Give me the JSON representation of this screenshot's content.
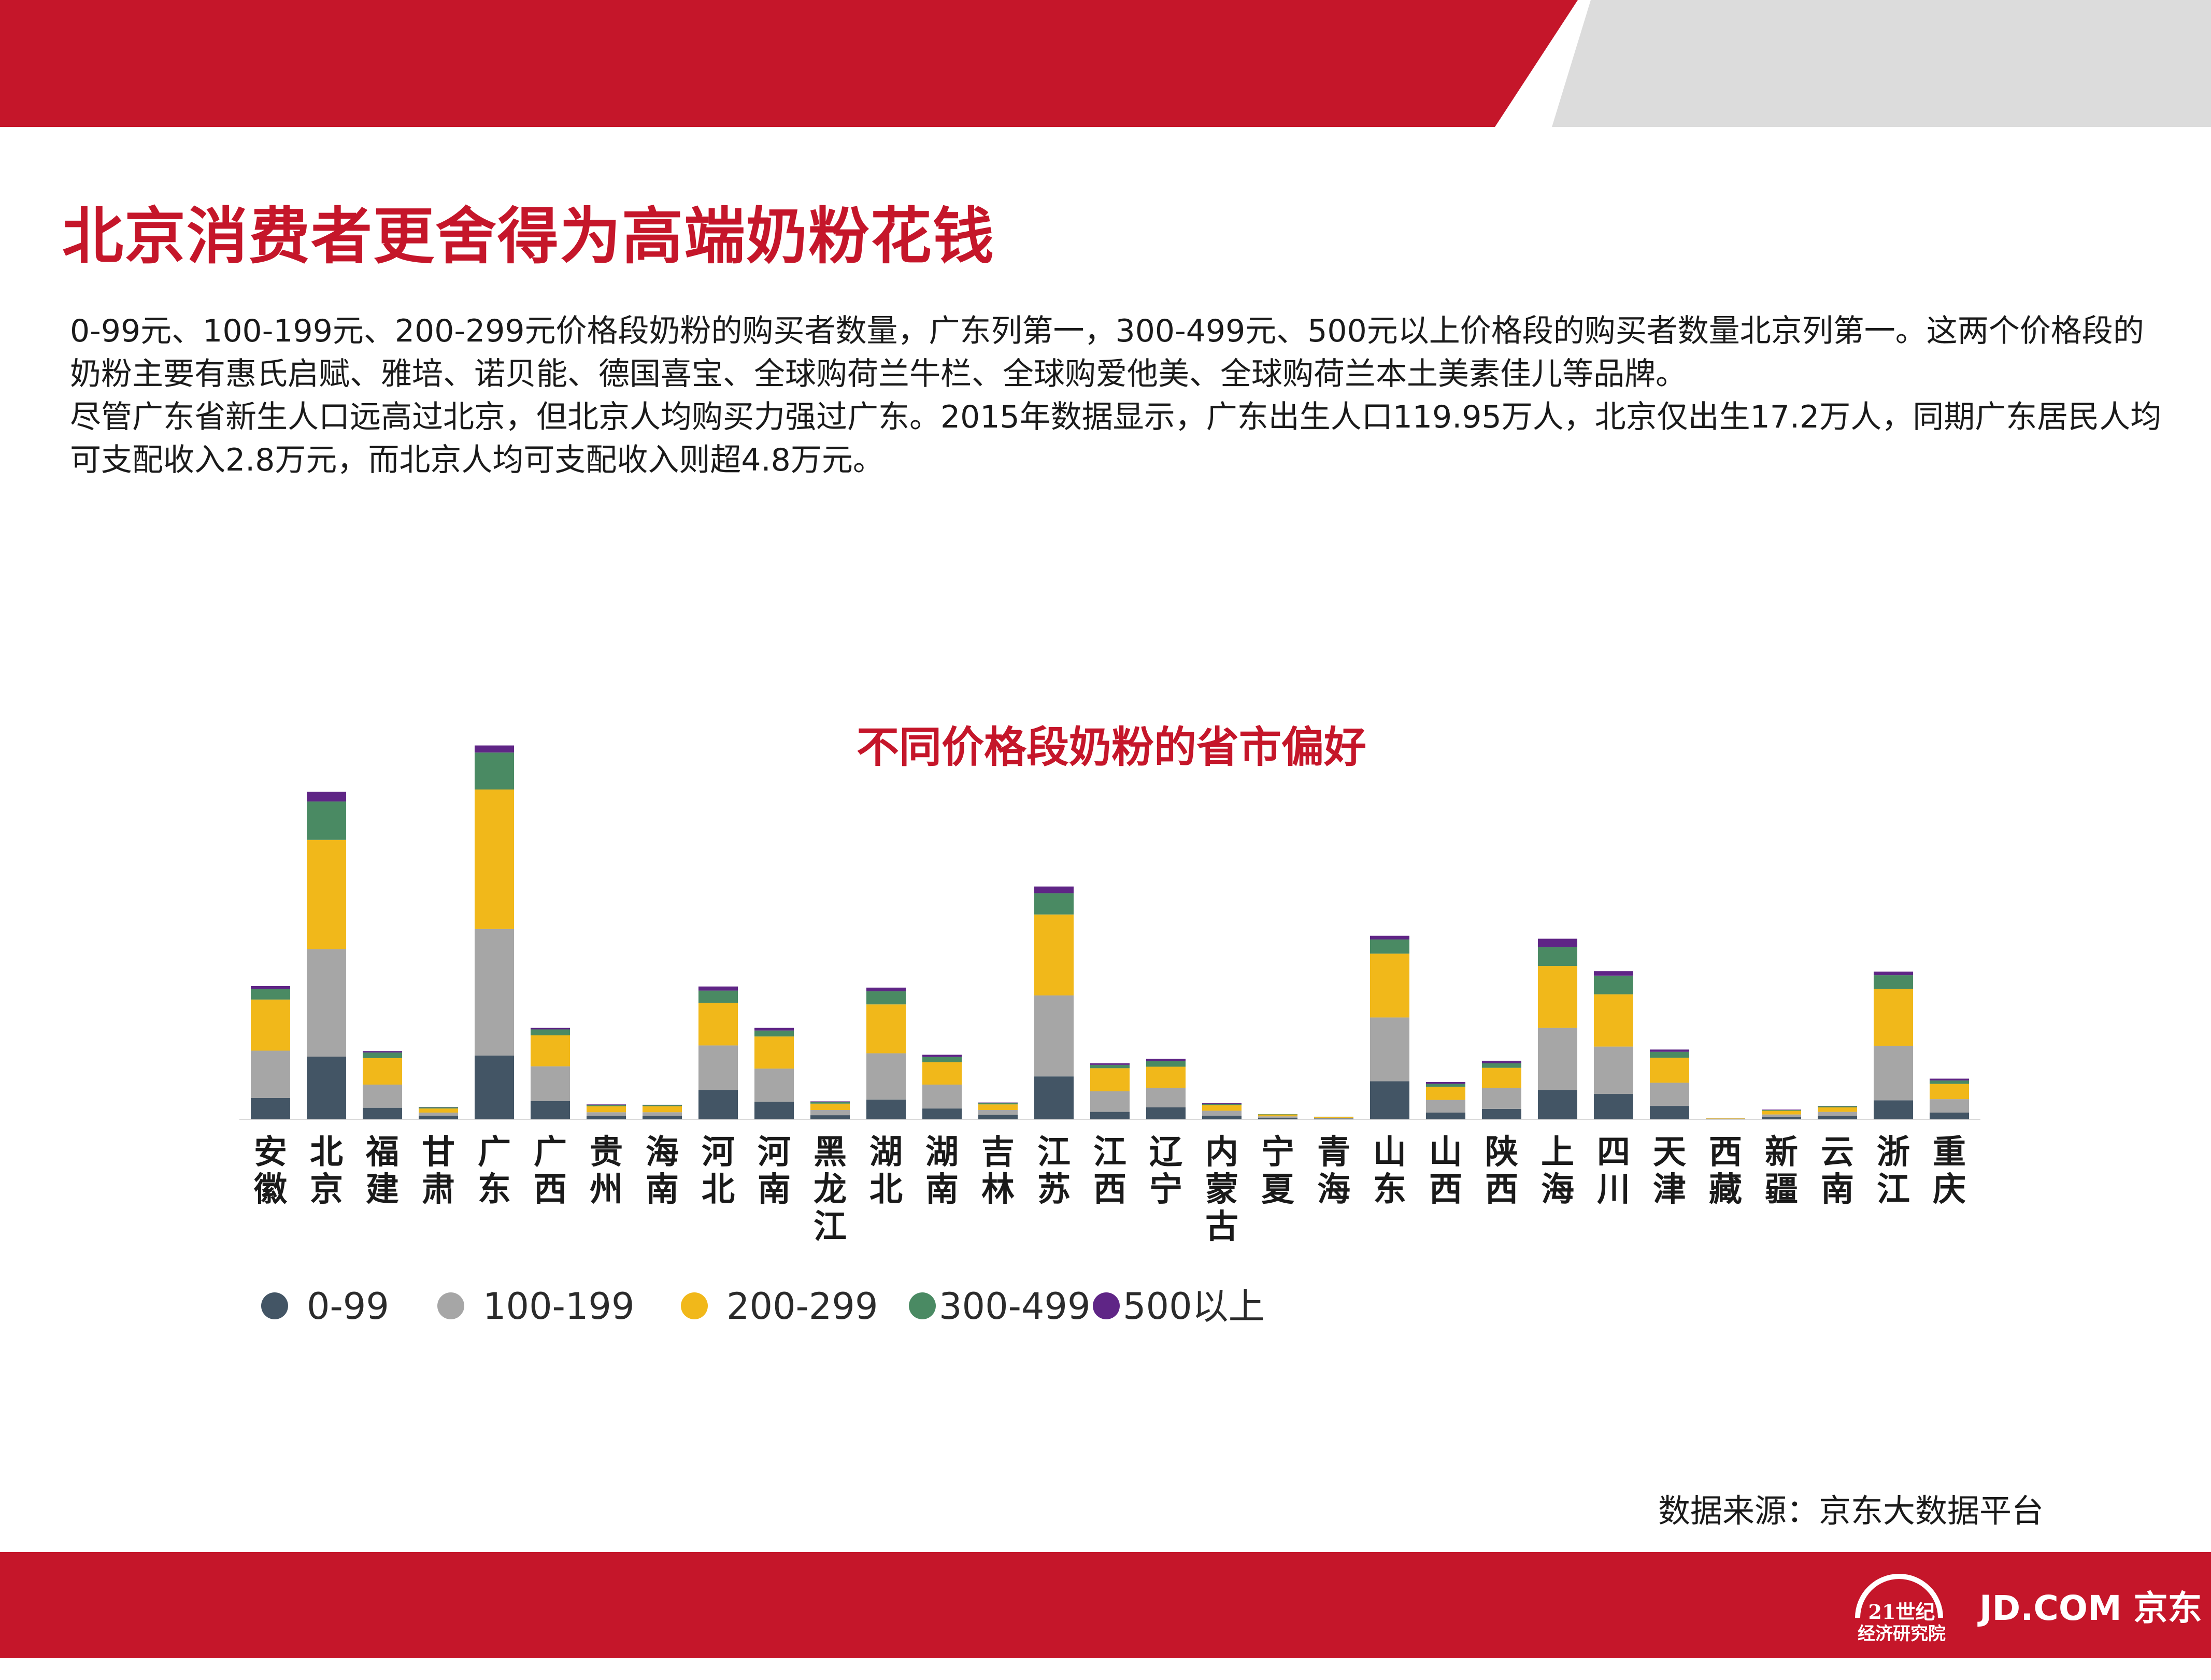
{
  "page": {
    "title": "北京消费者更舍得为高端奶粉花钱",
    "paragraphs": [
      "0-99元、100-199元、200-299元价格段奶粉的购买者数量，广东列第一，300-499元、500元以上价格段的购买者数量北京列第一。这两个价格段的奶粉主要有惠氏启赋、雅培、诺贝能、德国喜宝、全球购荷兰牛栏、全球购爱他美、全球购荷兰本土美素佳儿等品牌。",
      "尽管广东省新生人口远高过北京，但北京人均购买力强过广东。2015年数据显示，广东出生人口119.95万人，北京仅出生17.2万人，同期广东居民人均可支配收入2.8万元，而北京人均可支配收入则超4.8万元。"
    ],
    "source": "数据来源：京东大数据平台"
  },
  "footer": {
    "logo_21_line1": "21世纪",
    "logo_21_line2": "经济研究院",
    "jd_logo": "JD.COM 京东"
  },
  "colors": {
    "brand_red": "#c5162a",
    "header_gray": "#dcdcdc",
    "series": [
      "#435565",
      "#a6a6a6",
      "#f1b81a",
      "#4a8a63",
      "#5f2586"
    ]
  },
  "chart_data": {
    "type": "bar",
    "stacked": true,
    "title": "不同价格段奶粉的省市偏好",
    "xlabel": "",
    "ylabel": "",
    "ylim": [
      0,
      100
    ],
    "grid": false,
    "legend_position": "bottom-left",
    "categories": [
      "安徽",
      "北京",
      "福建",
      "甘肃",
      "广东",
      "广西",
      "贵州",
      "海南",
      "河北",
      "河南",
      "黑龙江",
      "湖北",
      "湖南",
      "吉林",
      "江苏",
      "江西",
      "辽宁",
      "内蒙古",
      "宁夏",
      "青海",
      "山东",
      "山西",
      "陕西",
      "上海",
      "四川",
      "天津",
      "西藏",
      "新疆",
      "云南",
      "浙江",
      "重庆"
    ],
    "series": [
      {
        "name": "0-99",
        "values": [
          5.7,
          16.8,
          3.1,
          1.0,
          17.1,
          4.9,
          0.9,
          0.9,
          7.9,
          4.7,
          1.1,
          5.3,
          2.9,
          1.2,
          11.5,
          2.0,
          3.2,
          1.0,
          0.4,
          0.2,
          10.2,
          1.8,
          2.8,
          7.9,
          6.8,
          3.6,
          0.1,
          0.6,
          0.9,
          5.1,
          1.8
        ]
      },
      {
        "name": "100-199",
        "values": [
          12.7,
          28.8,
          6.2,
          0.8,
          33.9,
          9.3,
          1.0,
          1.0,
          11.9,
          8.9,
          1.4,
          12.4,
          6.4,
          1.3,
          21.7,
          5.5,
          5.2,
          1.3,
          0.4,
          0.2,
          17.1,
          3.4,
          5.6,
          16.6,
          12.7,
          6.2,
          0.1,
          0.7,
          1.1,
          14.6,
          3.6
        ]
      },
      {
        "name": "200-299",
        "values": [
          13.7,
          29.3,
          7.1,
          1.1,
          37.4,
          8.3,
          1.6,
          1.6,
          11.4,
          8.6,
          1.7,
          13.1,
          6.0,
          1.5,
          21.7,
          6.2,
          5.7,
          1.5,
          0.5,
          0.2,
          17.1,
          3.5,
          5.4,
          16.6,
          14.0,
          6.7,
          0.1,
          1.0,
          1.2,
          15.2,
          4.1
        ]
      },
      {
        "name": "300-499",
        "values": [
          2.8,
          10.3,
          1.5,
          0.3,
          9.9,
          1.6,
          0.4,
          0.3,
          3.3,
          1.6,
          0.4,
          3.5,
          1.4,
          0.4,
          5.7,
          0.9,
          1.5,
          0.3,
          0.1,
          0.1,
          3.8,
          0.8,
          1.2,
          5.1,
          5.0,
          1.6,
          0.0,
          0.2,
          0.3,
          3.7,
          0.9
        ]
      },
      {
        "name": "500以上",
        "values": [
          0.8,
          2.6,
          0.4,
          0.1,
          1.9,
          0.4,
          0.1,
          0.1,
          1.1,
          0.7,
          0.2,
          1.0,
          0.6,
          0.1,
          1.8,
          0.4,
          0.6,
          0.2,
          0.0,
          0.0,
          1.0,
          0.5,
          0.7,
          2.2,
          1.2,
          0.6,
          0.0,
          0.1,
          0.1,
          1.0,
          0.5
        ]
      }
    ]
  }
}
